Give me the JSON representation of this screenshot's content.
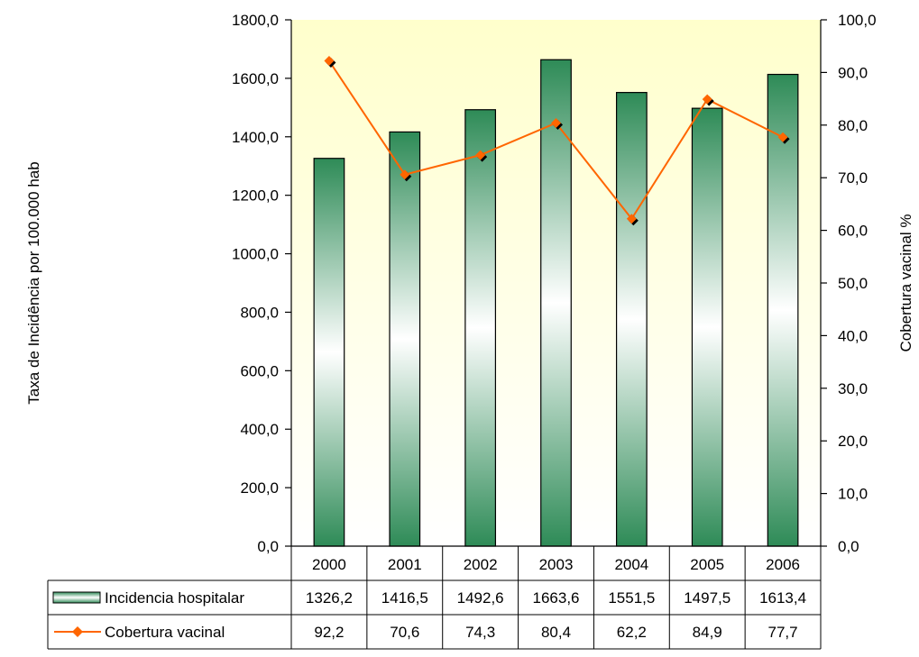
{
  "chart_data": {
    "type": "bar",
    "categories": [
      "2000",
      "2001",
      "2002",
      "2003",
      "2004",
      "2005",
      "2006"
    ],
    "series": [
      {
        "name": "Incidencia hospitalar",
        "kind": "bar",
        "axis": "left",
        "values": [
          1326.2,
          1416.5,
          1492.6,
          1663.6,
          1551.5,
          1497.5,
          1613.4
        ],
        "labels": [
          "1326,2",
          "1416,5",
          "1492,6",
          "1663,6",
          "1551,5",
          "1497,5",
          "1613,4"
        ],
        "color": "#2e8b57"
      },
      {
        "name": "Cobertura vacinal",
        "kind": "line",
        "axis": "right",
        "values": [
          92.2,
          70.6,
          74.3,
          80.4,
          62.2,
          84.9,
          77.7
        ],
        "labels": [
          "92,2",
          "70,6",
          "74,3",
          "80,4",
          "62,2",
          "84,9",
          "77,7"
        ],
        "color": "#ff6600"
      }
    ],
    "ylabel": "Taxa de Incidência por 100.000 hab",
    "ylabel_right": "Cobertura vacinal %",
    "ylim": [
      0,
      1800
    ],
    "ylim_right": [
      0,
      100
    ],
    "yticks": [
      "0,0",
      "200,0",
      "400,0",
      "600,0",
      "800,0",
      "1000,0",
      "1200,0",
      "1400,0",
      "1600,0",
      "1800,0"
    ],
    "yticks_right": [
      "0,0",
      "10,0",
      "20,0",
      "30,0",
      "40,0",
      "50,0",
      "60,0",
      "70,0",
      "80,0",
      "90,0",
      "100,0"
    ],
    "legend": "data-table-bottom",
    "grid": false,
    "colors": {
      "plot_bg_top": "#ffffcc",
      "plot_bg_bottom": "#ffffff",
      "bar_dark": "#2e8b57",
      "line": "#ff6600",
      "marker_shadow": "#000000"
    }
  }
}
